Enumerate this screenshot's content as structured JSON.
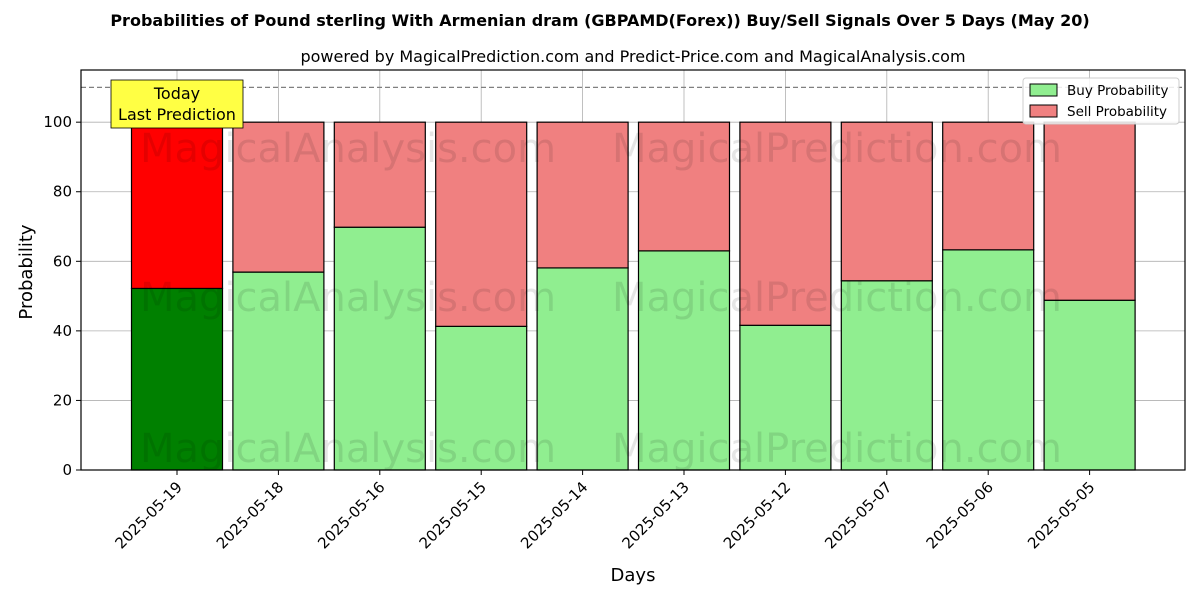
{
  "chart_data": {
    "type": "bar",
    "stacked": true,
    "title": "Probabilities of Pound sterling With Armenian dram (GBPAMD(Forex)) Buy/Sell Signals Over 5 Days (May 20)",
    "subtitle": "powered by MagicalPrediction.com and Predict-Price.com and MagicalAnalysis.com",
    "xlabel": "Days",
    "ylabel": "Probability",
    "ylim": [
      0,
      115
    ],
    "yticks": [
      0,
      20,
      40,
      60,
      80,
      100
    ],
    "grid": true,
    "legend_position": "top-right",
    "categories": [
      "2025-05-19",
      "2025-05-18",
      "2025-05-16",
      "2025-05-15",
      "2025-05-14",
      "2025-05-13",
      "2025-05-12",
      "2025-05-07",
      "2025-05-06",
      "2025-05-05"
    ],
    "series": [
      {
        "name": "Buy Probability",
        "color": "#90ee90",
        "highlight_color": "#008000",
        "values": [
          52.2,
          56.9,
          69.8,
          41.3,
          58.1,
          63.0,
          41.6,
          54.4,
          63.3,
          48.8
        ]
      },
      {
        "name": "Sell Probability",
        "color": "#f08080",
        "highlight_color": "#ff0000",
        "values": [
          47.8,
          43.1,
          30.2,
          58.7,
          41.9,
          37.0,
          58.4,
          45.6,
          36.7,
          51.2
        ]
      }
    ],
    "highlight_index": 0,
    "reference_line": {
      "y": 110,
      "style": "dashed"
    },
    "annotation": {
      "lines": [
        "Today",
        "Last Prediction"
      ],
      "color": "#ffff44"
    },
    "watermarks": [
      "MagicalAnalysis.com",
      "MagicalPrediction.com"
    ]
  }
}
